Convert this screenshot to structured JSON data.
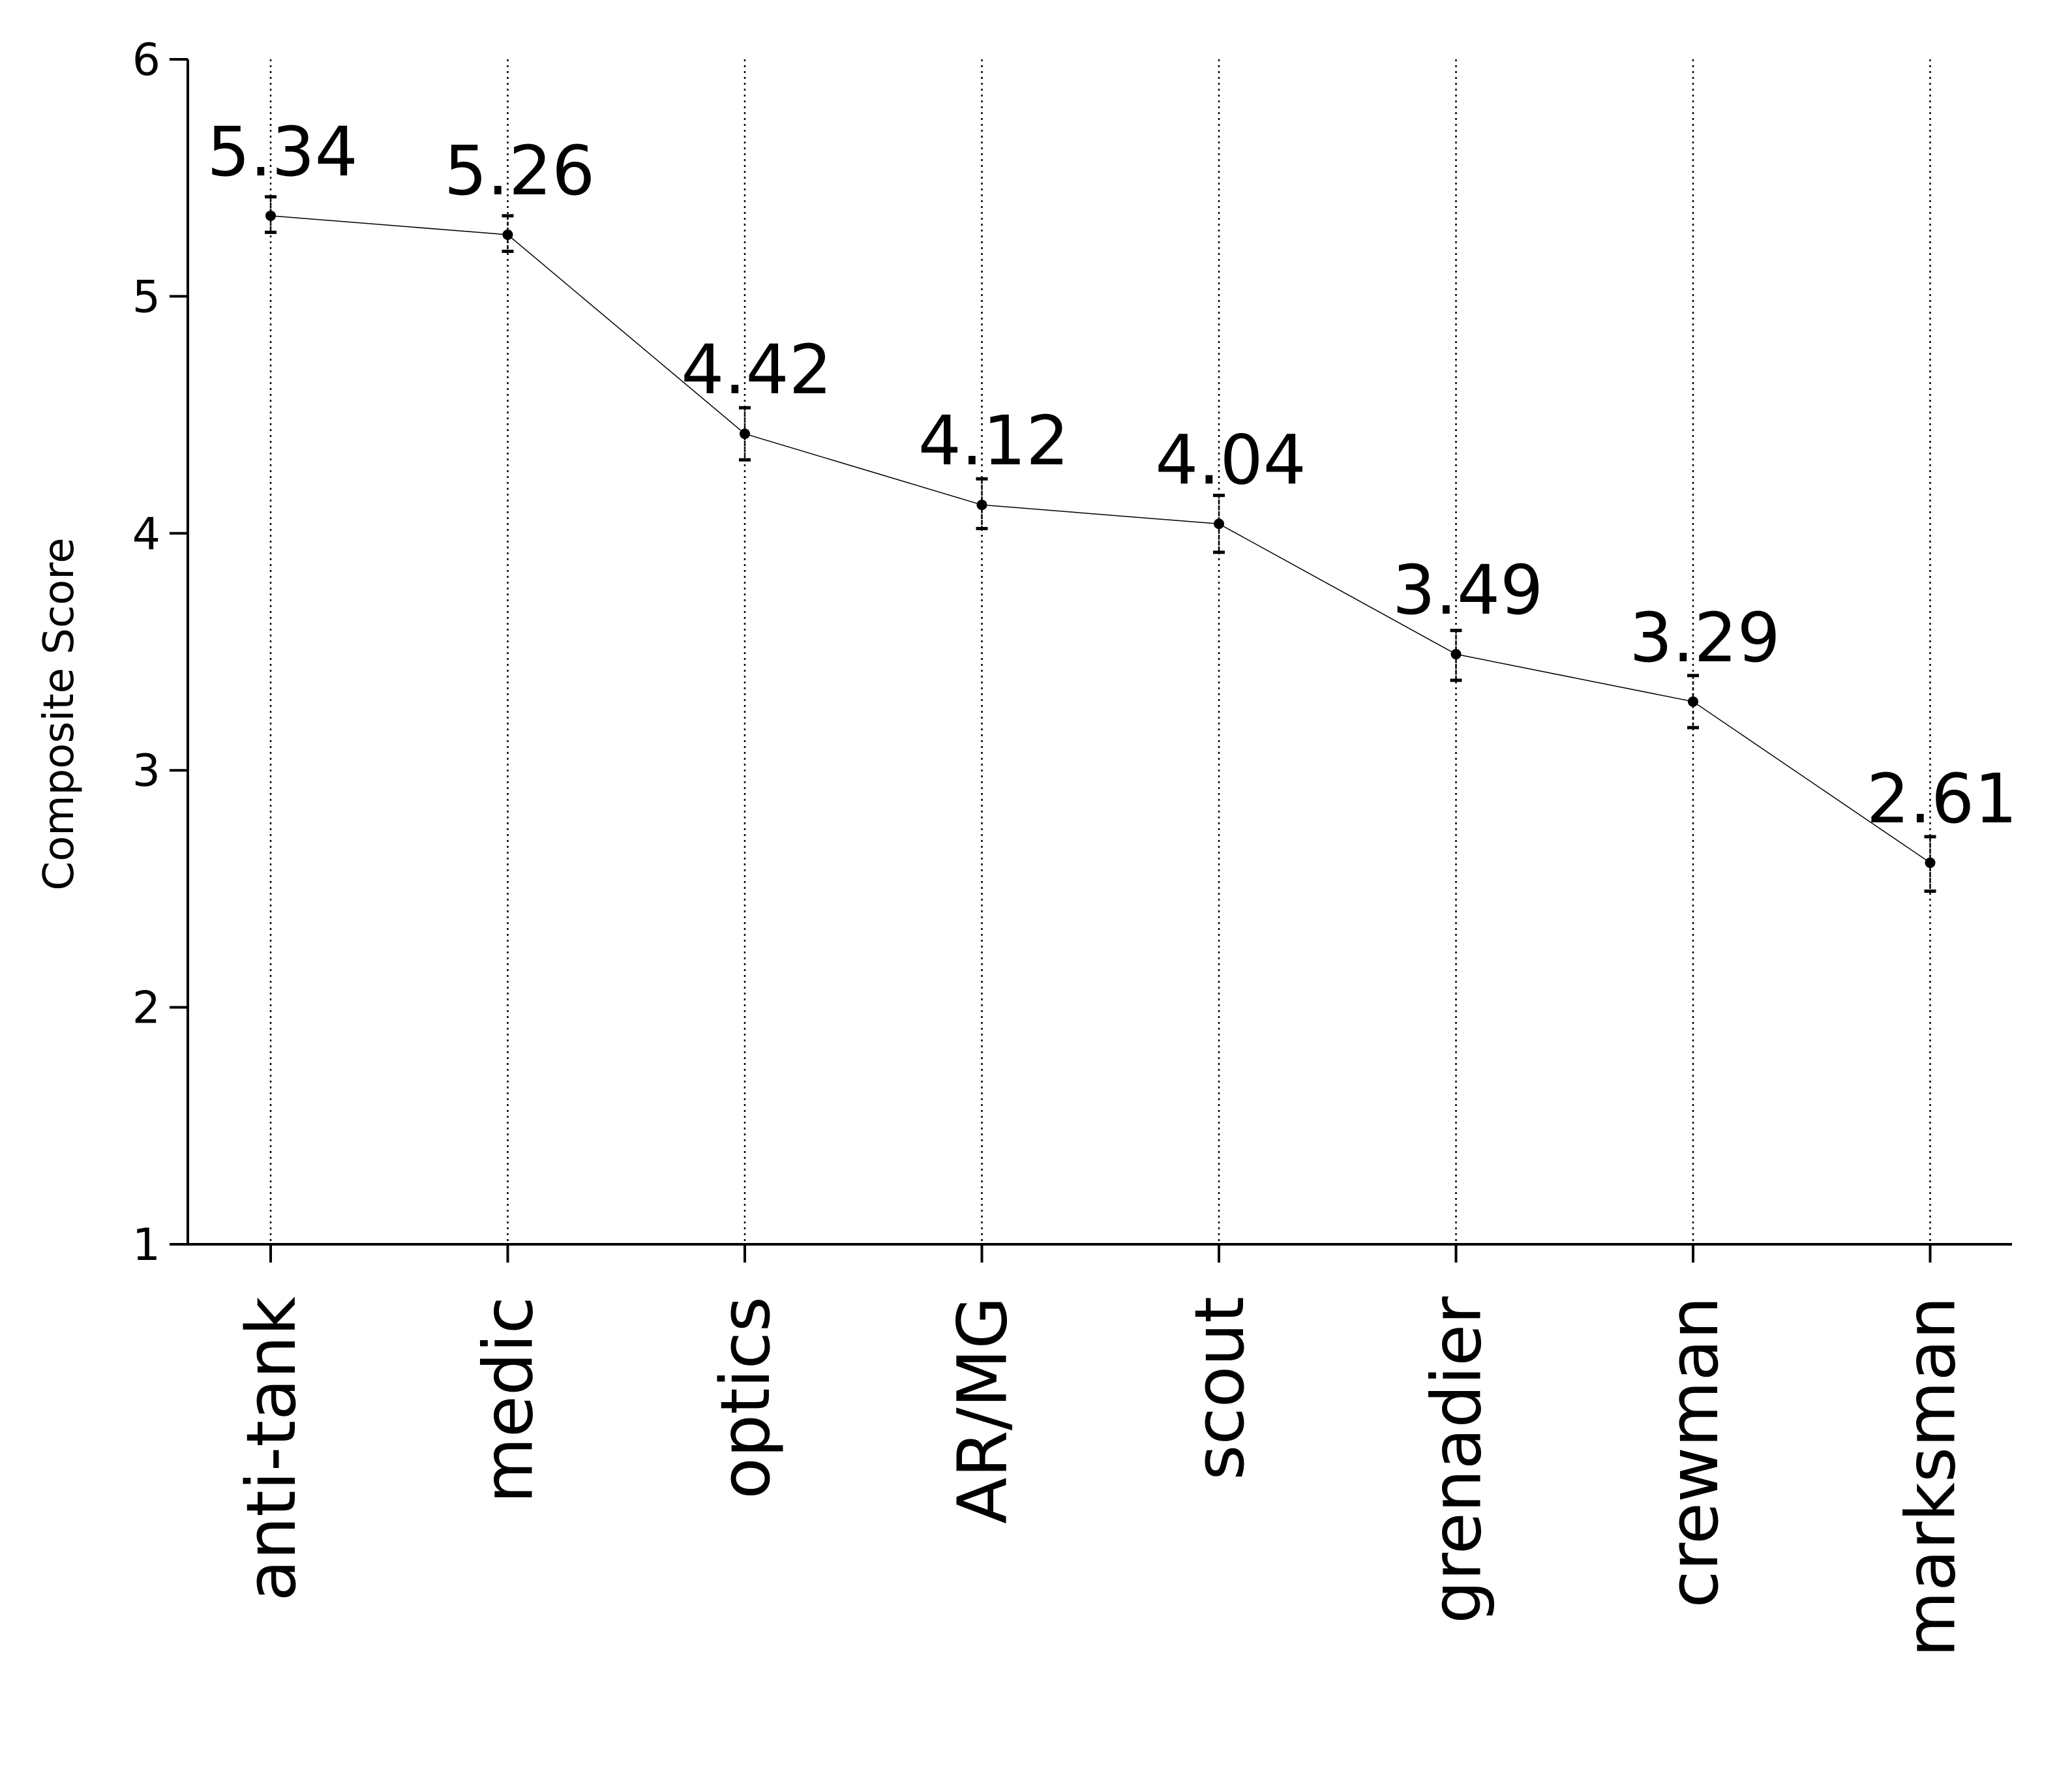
{
  "chart_data": {
    "type": "line",
    "title": "",
    "xlabel": "",
    "ylabel": "Composite Score",
    "ylim": [
      1,
      6
    ],
    "yticks": [
      1,
      2,
      3,
      4,
      5,
      6
    ],
    "categories": [
      "anti-tank",
      "medic",
      "optics",
      "AR/MG",
      "scout",
      "grenadier",
      "crewman",
      "marksman"
    ],
    "series": [
      {
        "values": [
          5.34,
          5.26,
          4.42,
          4.12,
          4.04,
          3.49,
          3.29,
          2.61
        ],
        "error_low": [
          5.27,
          5.19,
          4.31,
          4.02,
          3.92,
          3.38,
          3.18,
          2.49
        ],
        "error_high": [
          5.42,
          5.34,
          4.53,
          4.23,
          4.16,
          3.59,
          3.4,
          2.72
        ]
      }
    ],
    "data_labels": [
      "5.34",
      "5.26",
      "4.42",
      "4.12",
      "4.04",
      "3.49",
      "3.29",
      "2.61"
    ],
    "vertical_grid": "dotted",
    "legend": "none",
    "colors": {
      "line": "#000000",
      "grid": "#000000"
    }
  }
}
